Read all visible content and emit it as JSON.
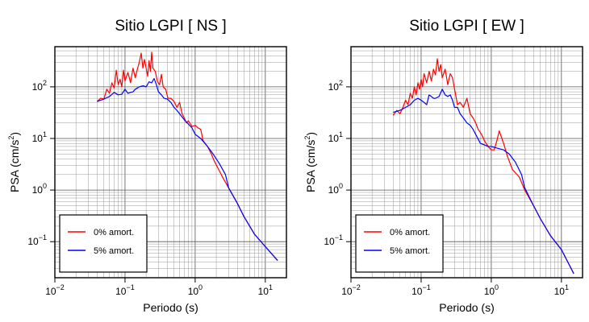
{
  "chart_data": [
    {
      "type": "line",
      "title": "Sitio LGPI [ NS ]",
      "xlabel": "Periodo (s)",
      "ylabel_main": "PSA (cm/s",
      "ylabel_sup": "2",
      "ylabel_tail": ")",
      "xscale": "log",
      "yscale": "log",
      "xlim": [
        0.01,
        20
      ],
      "ylim": [
        0.02,
        600
      ],
      "grid": true,
      "legend": "bottom-left",
      "x_ticks": [
        {
          "base": "10",
          "exp": "−2"
        },
        {
          "base": "10",
          "exp": "−1"
        },
        {
          "base": "10",
          "exp": "0"
        },
        {
          "base": "10",
          "exp": "1"
        }
      ],
      "y_ticks": [
        {
          "base": "10",
          "exp": "−1"
        },
        {
          "base": "10",
          "exp": "0"
        },
        {
          "base": "10",
          "exp": "1"
        },
        {
          "base": "10",
          "exp": "2"
        }
      ],
      "series": [
        {
          "name": "0% amort.",
          "color": "#ff0000",
          "x": [
            0.04,
            0.045,
            0.05,
            0.055,
            0.06,
            0.065,
            0.07,
            0.075,
            0.08,
            0.085,
            0.09,
            0.095,
            0.1,
            0.105,
            0.11,
            0.12,
            0.13,
            0.14,
            0.15,
            0.16,
            0.17,
            0.18,
            0.19,
            0.2,
            0.21,
            0.22,
            0.23,
            0.24,
            0.25,
            0.27,
            0.29,
            0.31,
            0.33,
            0.35,
            0.38,
            0.41,
            0.45,
            0.5,
            0.55,
            0.6,
            0.65,
            0.7,
            0.75,
            0.8,
            0.9,
            1.0,
            1.1,
            1.2,
            1.3,
            1.5,
            1.7,
            1.9,
            2.2,
            2.5,
            3.0,
            4.0,
            5.0,
            7.0,
            10.0,
            15.0
          ],
          "y": [
            52,
            60,
            58,
            90,
            75,
            120,
            95,
            210,
            110,
            140,
            100,
            210,
            130,
            160,
            190,
            120,
            230,
            150,
            220,
            300,
            450,
            230,
            340,
            230,
            160,
            320,
            200,
            470,
            230,
            200,
            125,
            110,
            175,
            100,
            90,
            60,
            60,
            52,
            40,
            50,
            30,
            25,
            20,
            22,
            17,
            18,
            16,
            15,
            9,
            7,
            5,
            3.5,
            2.4,
            1.7,
            1.1,
            0.55,
            0.3,
            0.14,
            0.08,
            0.043
          ]
        },
        {
          "name": "5% amort.",
          "color": "#0000ff",
          "x": [
            0.04,
            0.05,
            0.06,
            0.07,
            0.08,
            0.09,
            0.1,
            0.11,
            0.12,
            0.13,
            0.14,
            0.15,
            0.16,
            0.18,
            0.2,
            0.22,
            0.24,
            0.26,
            0.28,
            0.3,
            0.33,
            0.36,
            0.4,
            0.45,
            0.5,
            0.55,
            0.6,
            0.7,
            0.8,
            0.9,
            1.0,
            1.2,
            1.5,
            1.8,
            2.2,
            2.7,
            3.0,
            4.0,
            5.0,
            7.0,
            10.0,
            15.0
          ],
          "y": [
            52,
            58,
            65,
            78,
            70,
            72,
            90,
            75,
            78,
            80,
            90,
            95,
            100,
            105,
            100,
            125,
            120,
            145,
            110,
            80,
            70,
            60,
            58,
            50,
            40,
            35,
            30,
            23,
            19,
            16,
            12,
            10,
            7,
            5,
            3.3,
            2.0,
            1.1,
            0.55,
            0.3,
            0.14,
            0.08,
            0.043
          ]
        }
      ]
    },
    {
      "type": "line",
      "title": "Sitio LGPI [ EW ]",
      "xlabel": "Periodo (s)",
      "ylabel_main": "PSA (cm/s",
      "ylabel_sup": "2",
      "ylabel_tail": ")",
      "xscale": "log",
      "yscale": "log",
      "xlim": [
        0.01,
        20
      ],
      "ylim": [
        0.02,
        600
      ],
      "grid": true,
      "legend": "bottom-left",
      "x_ticks": [
        {
          "base": "10",
          "exp": "−2"
        },
        {
          "base": "10",
          "exp": "−1"
        },
        {
          "base": "10",
          "exp": "0"
        },
        {
          "base": "10",
          "exp": "1"
        }
      ],
      "y_ticks": [
        {
          "base": "10",
          "exp": "−1"
        },
        {
          "base": "10",
          "exp": "0"
        },
        {
          "base": "10",
          "exp": "1"
        },
        {
          "base": "10",
          "exp": "2"
        }
      ],
      "series": [
        {
          "name": "0% amort.",
          "color": "#ff0000",
          "x": [
            0.04,
            0.045,
            0.05,
            0.055,
            0.06,
            0.065,
            0.07,
            0.075,
            0.08,
            0.085,
            0.09,
            0.095,
            0.1,
            0.105,
            0.11,
            0.12,
            0.13,
            0.14,
            0.15,
            0.16,
            0.17,
            0.18,
            0.19,
            0.2,
            0.22,
            0.24,
            0.26,
            0.28,
            0.3,
            0.33,
            0.36,
            0.4,
            0.45,
            0.5,
            0.55,
            0.6,
            0.65,
            0.7,
            0.75,
            0.8,
            0.9,
            1.0,
            1.1,
            1.2,
            1.3,
            1.5,
            1.7,
            2.0,
            2.5,
            3.0,
            4.0,
            5.0,
            7.0,
            10.0,
            15.0
          ],
          "y": [
            28,
            35,
            30,
            40,
            55,
            45,
            75,
            60,
            100,
            70,
            120,
            90,
            140,
            100,
            180,
            120,
            200,
            130,
            220,
            170,
            350,
            200,
            270,
            150,
            220,
            110,
            180,
            150,
            90,
            45,
            50,
            40,
            60,
            30,
            25,
            20,
            15,
            13,
            11,
            9,
            7,
            6,
            6,
            9,
            14,
            8,
            4.5,
            2.5,
            1.8,
            1.0,
            0.5,
            0.28,
            0.13,
            0.07,
            0.024
          ]
        },
        {
          "name": "5% amort.",
          "color": "#0000ff",
          "x": [
            0.04,
            0.05,
            0.06,
            0.07,
            0.08,
            0.09,
            0.1,
            0.11,
            0.12,
            0.13,
            0.14,
            0.15,
            0.16,
            0.18,
            0.2,
            0.22,
            0.24,
            0.26,
            0.28,
            0.3,
            0.33,
            0.36,
            0.4,
            0.45,
            0.5,
            0.55,
            0.6,
            0.7,
            0.8,
            0.9,
            1.0,
            1.2,
            1.5,
            1.8,
            2.2,
            2.7,
            3.0,
            4.0,
            5.0,
            7.0,
            10.0,
            15.0
          ],
          "y": [
            32,
            35,
            40,
            45,
            55,
            60,
            55,
            50,
            45,
            70,
            65,
            60,
            60,
            65,
            90,
            70,
            65,
            70,
            55,
            40,
            40,
            30,
            25,
            20,
            18,
            15,
            12,
            8,
            7.5,
            7,
            7,
            6.5,
            6,
            5,
            3.5,
            2.0,
            1.1,
            0.5,
            0.28,
            0.13,
            0.07,
            0.024
          ]
        }
      ]
    }
  ]
}
